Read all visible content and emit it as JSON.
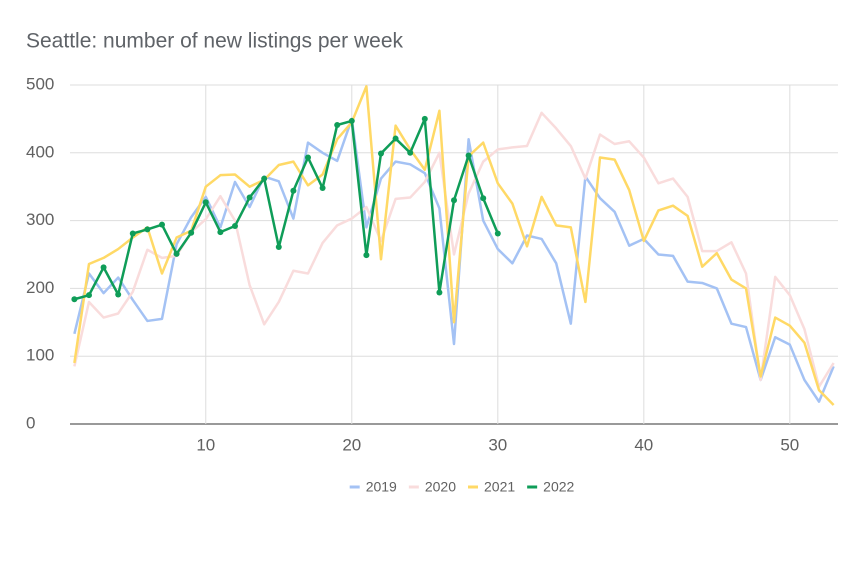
{
  "chart_data": {
    "type": "line",
    "title": "Seattle: number of new listings per week",
    "x": [
      1,
      2,
      3,
      4,
      5,
      6,
      7,
      8,
      9,
      10,
      11,
      12,
      13,
      14,
      15,
      16,
      17,
      18,
      19,
      20,
      21,
      22,
      23,
      24,
      25,
      26,
      27,
      28,
      29,
      30,
      31,
      32,
      33,
      34,
      35,
      36,
      37,
      38,
      39,
      40,
      41,
      42,
      43,
      44,
      45,
      46,
      47,
      48,
      49,
      50,
      51,
      52,
      53
    ],
    "xlim": [
      0.7,
      53.3
    ],
    "xticks": [
      10,
      20,
      30,
      40,
      50
    ],
    "ylim": [
      0,
      500
    ],
    "yticks": [
      0,
      100,
      200,
      300,
      400,
      500
    ],
    "grid": true,
    "legend": "bottom",
    "series": [
      {
        "name": "2019",
        "color": "#a4c2f4",
        "markers": false,
        "values": [
          133,
          222,
          193,
          216,
          183,
          152,
          155,
          265,
          305,
          335,
          290,
          357,
          320,
          365,
          358,
          303,
          415,
          400,
          388,
          450,
          290,
          362,
          387,
          383,
          370,
          318,
          118,
          420,
          300,
          258,
          237,
          278,
          273,
          237,
          148,
          365,
          333,
          313,
          263,
          273,
          250,
          248,
          210,
          208,
          200,
          148,
          143,
          65,
          128,
          117,
          65,
          33,
          85
        ]
      },
      {
        "name": "2020",
        "color": "#f9dcdc",
        "markers": false,
        "values": [
          85,
          180,
          157,
          163,
          195,
          257,
          245,
          248,
          283,
          302,
          336,
          300,
          205,
          147,
          180,
          226,
          222,
          267,
          293,
          303,
          320,
          270,
          332,
          334,
          357,
          400,
          250,
          340,
          387,
          405,
          408,
          410,
          459,
          436,
          410,
          362,
          427,
          413,
          417,
          393,
          355,
          362,
          335,
          255,
          255,
          268,
          222,
          65,
          217,
          190,
          140,
          55,
          90
        ]
      },
      {
        "name": "2021",
        "color": "#ffd966",
        "markers": false,
        "values": [
          90,
          236,
          245,
          258,
          275,
          290,
          222,
          275,
          285,
          350,
          367,
          368,
          350,
          360,
          382,
          387,
          352,
          368,
          420,
          445,
          498,
          243,
          440,
          405,
          375,
          462,
          150,
          395,
          415,
          355,
          325,
          262,
          335,
          293,
          290,
          180,
          393,
          390,
          345,
          270,
          315,
          322,
          307,
          232,
          252,
          213,
          200,
          70,
          157,
          145,
          120,
          50,
          28
        ]
      },
      {
        "name": "2022",
        "color": "#0f9d58",
        "markers": true,
        "values": [
          184,
          190,
          231,
          191,
          281,
          287,
          294,
          251,
          282,
          327,
          283,
          292,
          334,
          362,
          261,
          344,
          393,
          348,
          441,
          447,
          249,
          399,
          421,
          400,
          450,
          194,
          330,
          396,
          333,
          281,
          null,
          null,
          null,
          null,
          null,
          null,
          null,
          null,
          null,
          null,
          null,
          null,
          null,
          null,
          null,
          null,
          null,
          null,
          null,
          null,
          null,
          null,
          null
        ]
      }
    ]
  }
}
